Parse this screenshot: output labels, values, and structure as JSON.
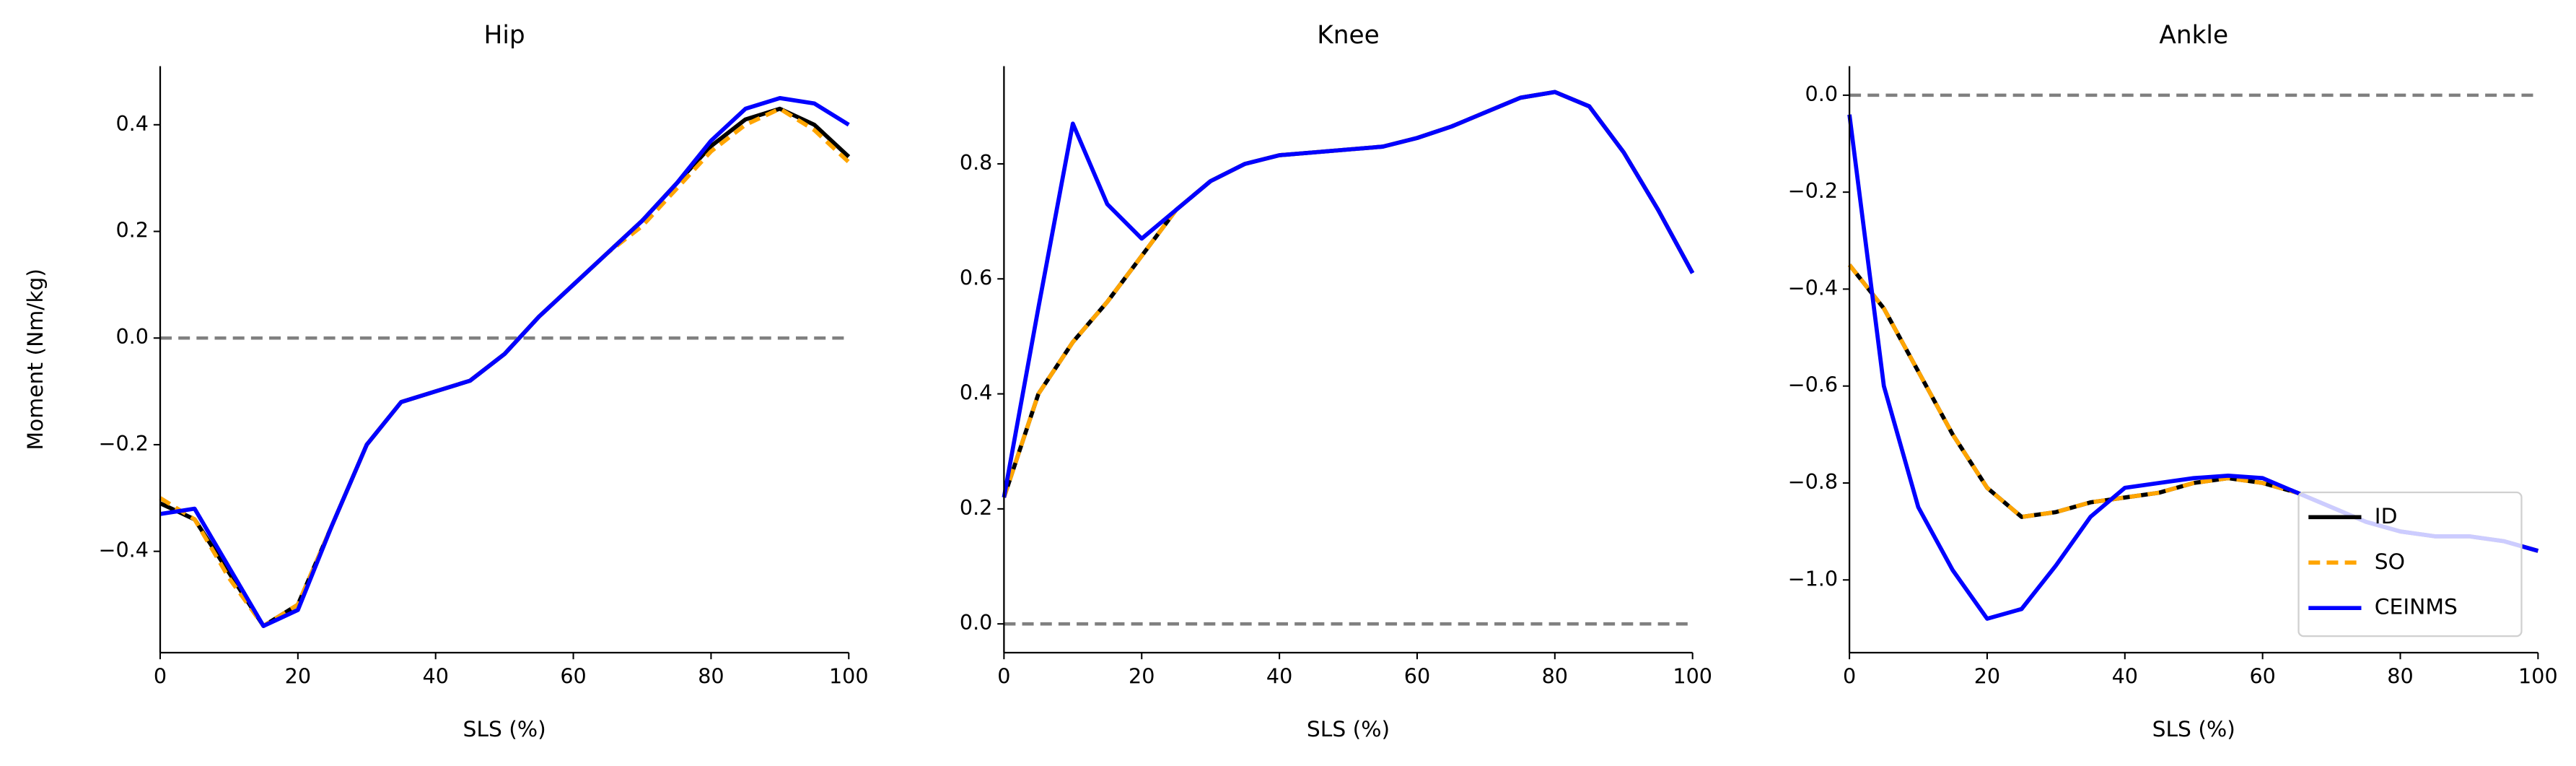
{
  "chart_data": [
    {
      "type": "line",
      "title": "Hip",
      "xlabel": "SLS (%)",
      "ylabel": "Moment (Nm/kg)",
      "x": [
        0,
        5,
        10,
        15,
        20,
        25,
        30,
        35,
        40,
        45,
        50,
        55,
        60,
        65,
        70,
        75,
        80,
        85,
        90,
        95,
        100
      ],
      "series": [
        {
          "name": "ID",
          "color": "#000000",
          "style": "solid",
          "values": [
            -0.31,
            -0.34,
            -0.44,
            -0.54,
            -0.5,
            -0.35,
            -0.2,
            -0.12,
            -0.1,
            -0.08,
            -0.03,
            0.04,
            0.1,
            0.16,
            0.22,
            0.29,
            0.36,
            0.41,
            0.43,
            0.4,
            0.34
          ]
        },
        {
          "name": "SO",
          "color": "#ffa500",
          "style": "dashed",
          "values": [
            -0.3,
            -0.34,
            -0.45,
            -0.54,
            -0.5,
            -0.35,
            -0.2,
            -0.12,
            -0.1,
            -0.08,
            -0.03,
            0.04,
            0.1,
            0.16,
            0.21,
            0.28,
            0.35,
            0.4,
            0.43,
            0.39,
            0.33
          ]
        },
        {
          "name": "CEINMS",
          "color": "#0000ff",
          "style": "solid",
          "values": [
            -0.33,
            -0.32,
            -0.43,
            -0.54,
            -0.51,
            -0.35,
            -0.2,
            -0.12,
            -0.1,
            -0.08,
            -0.03,
            0.04,
            0.1,
            0.16,
            0.22,
            0.29,
            0.37,
            0.43,
            0.45,
            0.44,
            0.4
          ]
        }
      ],
      "hline": 0,
      "xlim": [
        0,
        100
      ],
      "xticks": [
        0,
        20,
        40,
        60,
        80,
        100
      ],
      "ylim": [
        -0.59,
        0.51
      ],
      "yticks": [
        {
          "value": -0.4,
          "label": "−0.4"
        },
        {
          "value": -0.2,
          "label": "−0.2"
        },
        {
          "value": 0,
          "label": "0.0"
        },
        0.2,
        0.4
      ]
    },
    {
      "type": "line",
      "title": "Knee",
      "xlabel": "SLS (%)",
      "x": [
        0,
        5,
        10,
        15,
        20,
        25,
        30,
        35,
        40,
        45,
        50,
        55,
        60,
        65,
        70,
        75,
        80,
        85,
        90,
        95,
        100
      ],
      "series": [
        {
          "name": "ID",
          "color": "#000000",
          "style": "solid",
          "values": [
            0.22,
            0.4,
            0.49,
            0.56,
            0.64,
            0.72,
            0.77,
            0.8,
            0.815,
            0.82,
            0.825,
            0.83,
            0.845,
            0.865,
            0.89,
            0.915,
            0.925,
            0.9,
            0.82,
            0.72,
            0.61
          ]
        },
        {
          "name": "SO",
          "color": "#ffa500",
          "style": "dashed",
          "values": [
            0.22,
            0.4,
            0.49,
            0.56,
            0.64,
            0.72,
            0.77,
            0.8,
            0.815,
            0.82,
            0.825,
            0.83,
            0.845,
            0.865,
            0.89,
            0.915,
            0.925,
            0.9,
            0.82,
            0.72,
            0.61
          ]
        },
        {
          "name": "CEINMS",
          "color": "#0000ff",
          "style": "solid",
          "values": [
            0.22,
            0.55,
            0.87,
            0.73,
            0.67,
            0.72,
            0.77,
            0.8,
            0.815,
            0.82,
            0.825,
            0.83,
            0.845,
            0.865,
            0.89,
            0.915,
            0.925,
            0.9,
            0.82,
            0.72,
            0.61
          ]
        }
      ],
      "hline": 0,
      "xlim": [
        0,
        100
      ],
      "xticks": [
        0,
        20,
        40,
        60,
        80,
        100
      ],
      "ylim": [
        -0.05,
        0.97
      ],
      "yticks": [
        {
          "value": 0,
          "label": "0.0"
        },
        0.2,
        0.4,
        0.6,
        0.8
      ]
    },
    {
      "type": "line",
      "title": "Ankle",
      "xlabel": "SLS (%)",
      "x": [
        0,
        5,
        10,
        15,
        20,
        25,
        30,
        35,
        40,
        45,
        50,
        55,
        60,
        65,
        70,
        75,
        80,
        85,
        90,
        95,
        100
      ],
      "series": [
        {
          "name": "ID",
          "color": "#000000",
          "style": "solid",
          "values": [
            -0.35,
            -0.44,
            -0.57,
            -0.7,
            -0.81,
            -0.87,
            -0.86,
            -0.84,
            -0.83,
            -0.82,
            -0.8,
            -0.79,
            -0.8,
            -0.82,
            -0.85,
            -0.88,
            -0.9,
            -0.91,
            -0.91,
            -0.92,
            -0.94
          ]
        },
        {
          "name": "SO",
          "color": "#ffa500",
          "style": "dashed",
          "values": [
            -0.35,
            -0.44,
            -0.57,
            -0.7,
            -0.81,
            -0.87,
            -0.86,
            -0.84,
            -0.83,
            -0.82,
            -0.8,
            -0.79,
            -0.8,
            -0.82,
            -0.85,
            -0.88,
            -0.9,
            -0.91,
            -0.91,
            -0.92,
            -0.94
          ]
        },
        {
          "name": "CEINMS",
          "color": "#0000ff",
          "style": "solid",
          "values": [
            -0.04,
            -0.6,
            -0.85,
            -0.98,
            -1.08,
            -1.06,
            -0.97,
            -0.87,
            -0.81,
            -0.8,
            -0.79,
            -0.785,
            -0.79,
            -0.82,
            -0.85,
            -0.88,
            -0.9,
            -0.91,
            -0.91,
            -0.92,
            -0.94
          ]
        }
      ],
      "hline": 0,
      "legend": "lower right",
      "xlim": [
        0,
        100
      ],
      "xticks": [
        0,
        20,
        40,
        60,
        80,
        100
      ],
      "ylim": [
        -1.15,
        0.06
      ],
      "yticks": [
        {
          "value": -1.0,
          "label": "−1.0"
        },
        {
          "value": -0.8,
          "label": "−0.8"
        },
        {
          "value": -0.6,
          "label": "−0.6"
        },
        {
          "value": -0.4,
          "label": "−0.4"
        },
        {
          "value": -0.2,
          "label": "−0.2"
        },
        {
          "value": 0,
          "label": "0.0"
        }
      ]
    }
  ]
}
